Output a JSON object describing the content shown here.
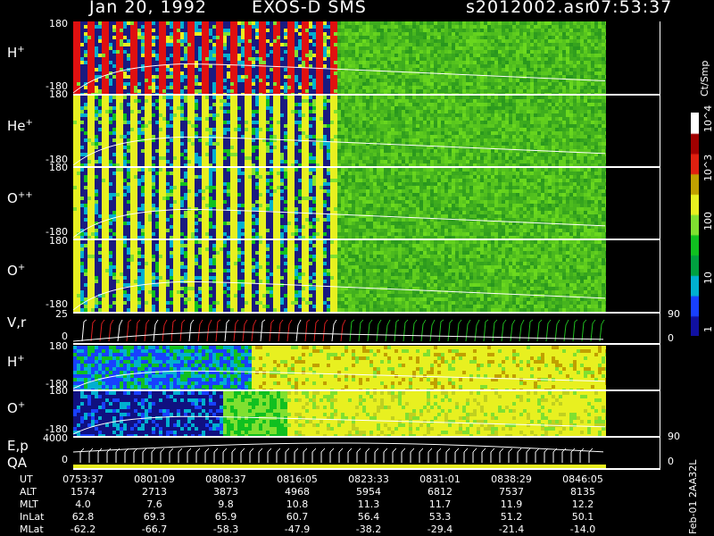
{
  "header": {
    "date": "Jan 20, 1992",
    "instrument": "EXOS-D SMS",
    "file": "s2012002.asr",
    "time": "07:53:37"
  },
  "panels": [
    {
      "id": "hplus_top",
      "label": "H",
      "sup": "+",
      "tick_top": "180",
      "tick_bot": "-180"
    },
    {
      "id": "heplus",
      "label": "He",
      "sup": "+",
      "tick_top": "180",
      "tick_bot": "-180"
    },
    {
      "id": "oplusplus",
      "label": "O",
      "sup": "++",
      "tick_top": "180",
      "tick_bot": "-180"
    },
    {
      "id": "oplus_top",
      "label": "O",
      "sup": "+",
      "tick_top": "180",
      "tick_bot": "-180"
    },
    {
      "id": "vr",
      "label": "V,r",
      "sup": "",
      "tick_top": "25",
      "tick_bot": "0",
      "rtick_top": "90",
      "rtick_bot": "0"
    },
    {
      "id": "hplus_low",
      "label": "H",
      "sup": "+",
      "tick_top": "180",
      "tick_bot": "-180"
    },
    {
      "id": "oplus_low",
      "label": "O",
      "sup": "+",
      "tick_top": "180",
      "tick_bot": "-180"
    },
    {
      "id": "ep",
      "label": "E,p",
      "label2": "QA",
      "sup": "",
      "tick_top": "4000",
      "tick_bot": "0",
      "rtick_top": "90",
      "rtick_bot": "0"
    }
  ],
  "colorbar": {
    "unit": "Ct/Smp",
    "labels": [
      "1",
      "10",
      "100",
      "10^3",
      "10^4"
    ],
    "colors": [
      "#1010a0",
      "#1840ff",
      "#00b0d0",
      "#00a040",
      "#10c020",
      "#80e030",
      "#e8f020",
      "#c0a000",
      "#e02010",
      "#a00000",
      "#ffffff"
    ]
  },
  "footer": {
    "rows": [
      {
        "label": "UT",
        "values": [
          "0753:37",
          "0801:09",
          "0808:37",
          "0816:05",
          "0823:33",
          "0831:01",
          "0838:29",
          "0846:05"
        ]
      },
      {
        "label": "ALT",
        "values": [
          "1574",
          "2713",
          "3873",
          "4968",
          "5954",
          "6812",
          "7537",
          "8135"
        ]
      },
      {
        "label": "MLT",
        "values": [
          "4.0",
          "7.6",
          "9.8",
          "10.8",
          "11.3",
          "11.7",
          "11.9",
          "12.2"
        ]
      },
      {
        "label": "InLat",
        "values": [
          "62.8",
          "69.3",
          "65.9",
          "60.7",
          "56.4",
          "53.3",
          "51.2",
          "50.1"
        ]
      },
      {
        "label": "MLat",
        "values": [
          "-62.2",
          "-66.7",
          "-58.3",
          "-47.9",
          "-38.2",
          "-29.4",
          "-21.4",
          "-14.0"
        ]
      }
    ],
    "side_text": "Feb-01 2AA32L"
  }
}
